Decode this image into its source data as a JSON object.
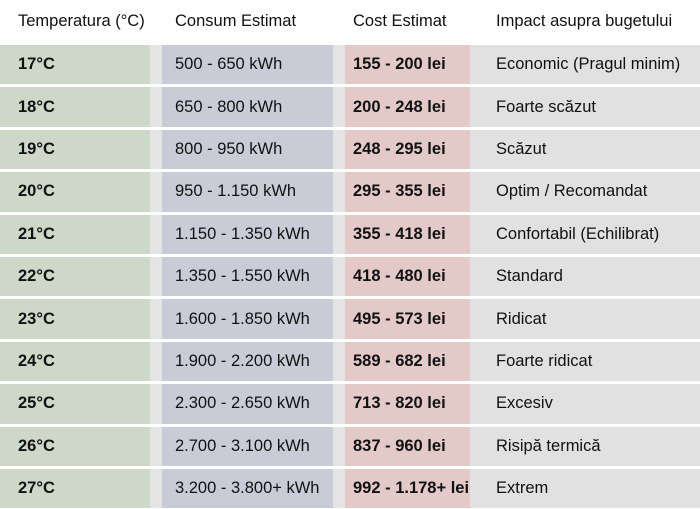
{
  "colors": {
    "temperature_column": "#cdd8c8",
    "consumption_column": "#c9ccd6",
    "cost_column": "#e4c9c9",
    "impact_column": "#e1e1e1",
    "gap": "#e4e4e4"
  },
  "headers": [
    "Temperatura (°C)",
    "Consum Estimat",
    "Cost Estimat",
    "Impact asupra bugetului"
  ],
  "rows": [
    {
      "temp": "17°C",
      "consum": "500 - 650 kWh",
      "cost": "155 - 200 lei",
      "impact": "Economic (Pragul minim)"
    },
    {
      "temp": "18°C",
      "consum": "650 - 800 kWh",
      "cost": "200 - 248 lei",
      "impact": "Foarte scăzut"
    },
    {
      "temp": "19°C",
      "consum": "800 - 950 kWh",
      "cost": "248 - 295 lei",
      "impact": "Scăzut"
    },
    {
      "temp": "20°C",
      "consum": "950 - 1.150 kWh",
      "cost": "295 - 355 lei",
      "impact": "Optim / Recomandat"
    },
    {
      "temp": "21°C",
      "consum": "1.150 - 1.350 kWh",
      "cost": "355 - 418 lei",
      "impact": "Confortabil (Echilibrat)"
    },
    {
      "temp": "22°C",
      "consum": "1.350 - 1.550 kWh",
      "cost": "418 - 480 lei",
      "impact": "Standard"
    },
    {
      "temp": "23°C",
      "consum": "1.600 - 1.850 kWh",
      "cost": "495 - 573 lei",
      "impact": "Ridicat"
    },
    {
      "temp": "24°C",
      "consum": "1.900 - 2.200 kWh",
      "cost": "589 - 682 lei",
      "impact": "Foarte ridicat"
    },
    {
      "temp": "25°C",
      "consum": "2.300 - 2.650 kWh",
      "cost": "713 - 820 lei",
      "impact": "Excesiv"
    },
    {
      "temp": "26°C",
      "consum": "2.700 - 3.100 kWh",
      "cost": "837 - 960 lei",
      "impact": "Risipă termică"
    },
    {
      "temp": "27°C",
      "consum": "3.200 - 3.800+ kWh",
      "cost": "992 - 1.178+ lei",
      "impact": "Extrem"
    }
  ]
}
